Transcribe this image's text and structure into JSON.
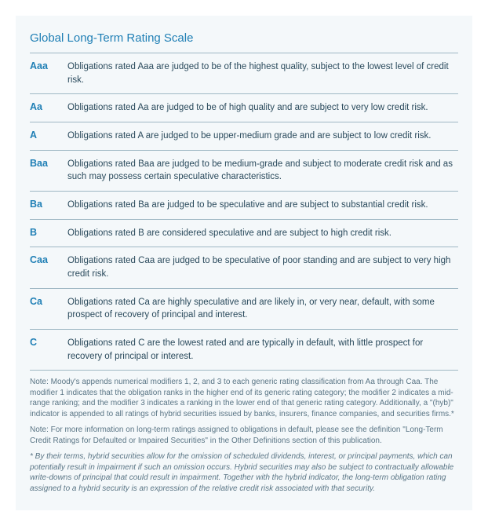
{
  "title": "Global Long-Term Rating Scale",
  "colors": {
    "card_bg": "#f4f8fa",
    "title": "#1f7fb5",
    "symbol": "#1f7fb5",
    "desc": "#2a4a5c",
    "note": "#5a7585",
    "rule": "#9fb8c4"
  },
  "typography": {
    "title_fontsize": 15,
    "symbol_fontsize": 12.5,
    "desc_fontsize": 11.5,
    "note_fontsize": 10,
    "family": "Segoe UI, Helvetica Neue, Arial, sans-serif"
  },
  "rows": [
    {
      "symbol": "Aaa",
      "desc": "Obligations rated Aaa are judged to be of the highest quality, subject to the lowest level of credit risk."
    },
    {
      "symbol": "Aa",
      "desc": "Obligations rated Aa are judged to be of high quality and are subject to very low credit risk."
    },
    {
      "symbol": "A",
      "desc": "Obligations rated A are judged to be upper-medium grade and are subject to low credit risk."
    },
    {
      "symbol": "Baa",
      "desc": "Obligations rated Baa are judged to be medium-grade and subject to moderate credit risk and as such may possess certain speculative characteristics."
    },
    {
      "symbol": "Ba",
      "desc": "Obligations rated Ba are judged to be speculative and are subject to substantial credit risk."
    },
    {
      "symbol": "B",
      "desc": "Obligations rated B are considered speculative and are subject to high credit risk."
    },
    {
      "symbol": "Caa",
      "desc": "Obligations rated Caa are judged to be speculative of poor standing and are subject to very high credit risk."
    },
    {
      "symbol": "Ca",
      "desc": "Obligations rated Ca are highly speculative and are likely in, or very near, default, with some prospect of recovery of principal and interest."
    },
    {
      "symbol": "C",
      "desc": "Obligations rated C are the lowest rated and are typically in default, with little prospect for recovery of principal or interest."
    }
  ],
  "notes": [
    {
      "text": "Note: Moody's appends numerical modifiers 1, 2, and 3 to each generic rating classification from Aa through Caa. The modifier 1 indicates that the obligation ranks in the higher end of its generic rating category; the modifier 2 indicates a mid-range ranking; and the modifier 3 indicates a ranking in the lower end of that generic rating category. Additionally, a \"(hyb)\" indicator is appended to all ratings of hybrid securities issued by banks, insurers, finance companies, and securities firms.*",
      "italic": false
    },
    {
      "text": "Note: For more information on long-term ratings assigned to obligations in default, please see the definition \"Long-Term Credit Ratings for Defaulted or Impaired Securities\" in the Other Definitions section of this publication.",
      "italic": false
    },
    {
      "text": "* By their terms, hybrid securities allow for the omission of scheduled dividends, interest, or principal payments, which can potentially result in impairment if such an omission occurs.  Hybrid securities may also be subject to contractually allowable write-downs of principal that could result in impairment. Together with the hybrid indicator, the long-term obligation rating assigned to a hybrid security is an expression of the relative credit risk associated with that security.",
      "italic": true
    }
  ]
}
